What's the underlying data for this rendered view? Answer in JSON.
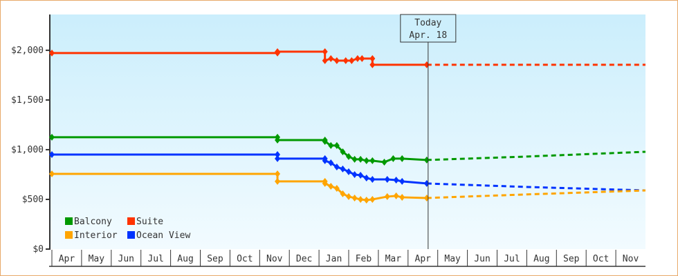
{
  "chart_data": {
    "type": "line",
    "title": "",
    "xlabel": "",
    "ylabel": "",
    "ylim": [
      0,
      2360
    ],
    "yticks": [
      0,
      500,
      1000,
      1500,
      2000
    ],
    "ytick_labels": [
      "$0",
      "$500",
      "$1,000",
      "$1,500",
      "$2,000"
    ],
    "x_unit": "months since first Apr",
    "xtick_labels": [
      "Apr",
      "May",
      "Jun",
      "Jul",
      "Aug",
      "Sep",
      "Oct",
      "Nov",
      "Dec",
      "Jan",
      "Feb",
      "Mar",
      "Apr",
      "May",
      "Jun",
      "Jul",
      "Aug",
      "Sep",
      "Oct",
      "Nov"
    ],
    "today": {
      "label": "Today",
      "date": "Apr. 18",
      "x": 12.63
    },
    "legend": {
      "placement": "bottom-left",
      "entries": [
        "Balcony",
        "Suite",
        "Interior",
        "Ocean View"
      ]
    },
    "series": [
      {
        "name": "Suite",
        "color": "#ff3300",
        "points": [
          [
            0,
            1972
          ],
          [
            7.6,
            1972
          ],
          [
            7.6,
            1986
          ],
          [
            9.2,
            1986
          ],
          [
            9.2,
            1896
          ],
          [
            9.4,
            1917
          ],
          [
            9.6,
            1896
          ],
          [
            9.9,
            1896
          ],
          [
            10.1,
            1896
          ],
          [
            10.3,
            1917
          ],
          [
            10.45,
            1917
          ],
          [
            10.8,
            1917
          ],
          [
            10.8,
            1854
          ],
          [
            12.63,
            1854
          ]
        ],
        "forecast": [
          [
            12.63,
            1854
          ],
          [
            20,
            1854
          ]
        ]
      },
      {
        "name": "Balcony",
        "color": "#009900",
        "points": [
          [
            0,
            1125
          ],
          [
            7.6,
            1125
          ],
          [
            7.6,
            1097
          ],
          [
            9.2,
            1097
          ],
          [
            9.2,
            1083
          ],
          [
            9.4,
            1042
          ],
          [
            9.6,
            1042
          ],
          [
            9.8,
            979
          ],
          [
            10.0,
            931
          ],
          [
            10.2,
            903
          ],
          [
            10.4,
            903
          ],
          [
            10.6,
            889
          ],
          [
            10.8,
            889
          ],
          [
            11.2,
            875
          ],
          [
            11.5,
            910
          ],
          [
            11.8,
            910
          ],
          [
            12.63,
            896
          ]
        ],
        "forecast": [
          [
            12.63,
            896
          ],
          [
            16,
            931
          ],
          [
            20,
            979
          ]
        ]
      },
      {
        "name": "Ocean View",
        "color": "#0033ff",
        "points": [
          [
            0,
            951
          ],
          [
            7.6,
            951
          ],
          [
            7.6,
            910
          ],
          [
            9.2,
            910
          ],
          [
            9.2,
            889
          ],
          [
            9.4,
            868
          ],
          [
            9.6,
            826
          ],
          [
            9.8,
            806
          ],
          [
            10.0,
            778
          ],
          [
            10.2,
            750
          ],
          [
            10.4,
            743
          ],
          [
            10.6,
            715
          ],
          [
            10.8,
            701
          ],
          [
            11.3,
            701
          ],
          [
            11.6,
            694
          ],
          [
            11.8,
            681
          ],
          [
            12.63,
            660
          ]
        ],
        "forecast": [
          [
            12.63,
            660
          ],
          [
            16,
            625
          ],
          [
            20,
            590
          ]
        ]
      },
      {
        "name": "Interior",
        "color": "#ffa500",
        "points": [
          [
            0,
            757
          ],
          [
            7.6,
            757
          ],
          [
            7.6,
            681
          ],
          [
            9.2,
            681
          ],
          [
            9.2,
            660
          ],
          [
            9.4,
            632
          ],
          [
            9.6,
            611
          ],
          [
            9.8,
            556
          ],
          [
            10.0,
            528
          ],
          [
            10.2,
            514
          ],
          [
            10.4,
            500
          ],
          [
            10.6,
            493
          ],
          [
            10.8,
            500
          ],
          [
            11.3,
            528
          ],
          [
            11.6,
            535
          ],
          [
            11.8,
            521
          ],
          [
            12.63,
            514
          ]
        ],
        "forecast": [
          [
            12.63,
            514
          ],
          [
            16,
            550
          ],
          [
            20,
            590
          ]
        ]
      }
    ]
  }
}
